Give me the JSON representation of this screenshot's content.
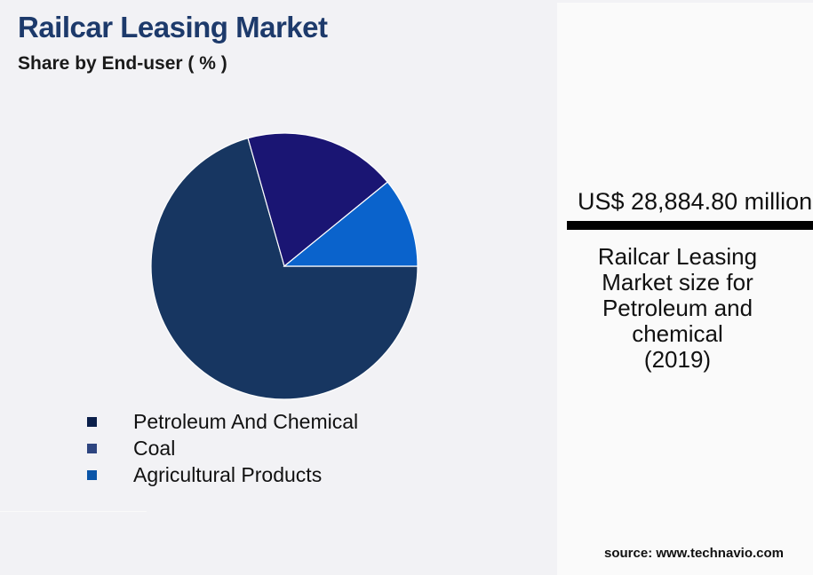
{
  "header": {
    "title": "Railcar Leasing Market",
    "subtitle": "Share by End-user ( % )"
  },
  "chart_data": {
    "type": "pie",
    "title": "Railcar Leasing Market",
    "subtitle": "Share by End-user ( % )",
    "categories": [
      "Petroleum And Chemical",
      "Coal",
      "Agricultural Products"
    ],
    "values": [
      70.6,
      18.5,
      10.9
    ],
    "slice_colors": [
      "#173661",
      "#1a1573",
      "#0a63cc"
    ],
    "legend_colors": [
      "#0b1f4a",
      "#2e4580",
      "#0a55a8"
    ],
    "legend_position": "bottom-left"
  },
  "info": {
    "value": "US$ 28,884.80 million",
    "description_lines": [
      "Railcar Leasing",
      "Market size for",
      "Petroleum and",
      "chemical",
      "(2019)"
    ]
  },
  "source": "source: www.technavio.com"
}
